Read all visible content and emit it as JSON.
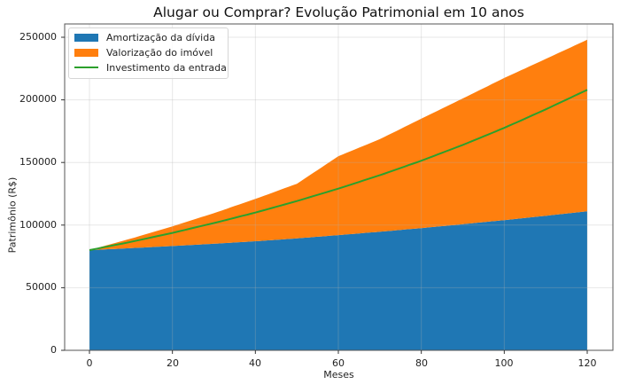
{
  "chart_data": {
    "type": "area",
    "title": "Alugar ou Comprar? Evolução Patrimonial em 10 anos",
    "xlabel": "Meses",
    "ylabel": "Patrimônio (R$)",
    "xlim": [
      -6,
      126
    ],
    "ylim": [
      0,
      260000
    ],
    "x_ticks": [
      0,
      20,
      40,
      60,
      80,
      100,
      120
    ],
    "y_ticks": [
      0,
      50000,
      100000,
      150000,
      200000,
      250000
    ],
    "grid": true,
    "legend_position": "upper left",
    "x": [
      0,
      10,
      20,
      30,
      40,
      50,
      60,
      70,
      80,
      90,
      100,
      110,
      120
    ],
    "series": [
      {
        "name": "Amortização da dívida",
        "kind": "stacked-area",
        "color": "#1f77b4",
        "values": [
          80000,
          81600,
          83300,
          85100,
          87100,
          89400,
          92000,
          94700,
          97600,
          100700,
          104000,
          107400,
          111000
        ]
      },
      {
        "name": "Valorização do imóvel",
        "kind": "stacked-area (top of stack shown as total)",
        "color": "#ff7f0e",
        "values": [
          0,
          7600,
          15700,
          24400,
          33800,
          43600,
          63000,
          73900,
          87400,
          100400,
          113500,
          125300,
          137000
        ],
        "stack_top": [
          80000,
          89200,
          99000,
          109500,
          120900,
          133000,
          155000,
          168600,
          185000,
          201100,
          217500,
          232700,
          248000
        ]
      },
      {
        "name": "Investimento da entrada",
        "kind": "line",
        "color": "#2ca02c",
        "values": [
          80000,
          86600,
          93800,
          101600,
          110000,
          119200,
          129100,
          139800,
          151400,
          164000,
          177600,
          192400,
          208000
        ]
      }
    ]
  },
  "legend": {
    "items": [
      {
        "label": "Amortização da dívida",
        "color": "#1f77b4"
      },
      {
        "label": "Valorização do imóvel",
        "color": "#ff7f0e"
      },
      {
        "label": "Investimento da entrada",
        "color": "#2ca02c"
      }
    ]
  },
  "labels": {
    "title": "Alugar ou Comprar? Evolução Patrimonial em 10 anos",
    "xlabel": "Meses",
    "ylabel": "Patrimônio (R$)",
    "yticks": [
      "0",
      "50000",
      "100000",
      "150000",
      "200000",
      "250000"
    ],
    "xticks": [
      "0",
      "20",
      "40",
      "60",
      "80",
      "100",
      "120"
    ]
  }
}
